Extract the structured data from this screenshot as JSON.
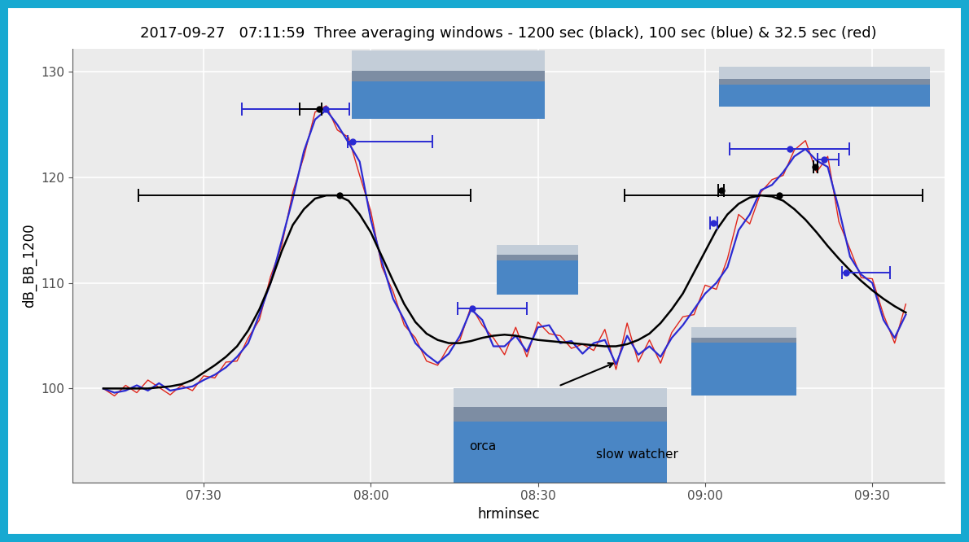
{
  "chart_data": {
    "type": "line",
    "title": "2017-09-27   07:11:59  Three averaging windows - 1200 sec (black), 100 sec (blue) & 32.5 sec (red)",
    "x_label": "hrminsec",
    "y_label": "dB_BB_1200",
    "xlim": [
      426.5,
      583
    ],
    "ylim": [
      91.1,
      132.2
    ],
    "xticks": [
      {
        "value": 450,
        "label": "07:30"
      },
      {
        "value": 480,
        "label": "08:00"
      },
      {
        "value": 510,
        "label": "08:30"
      },
      {
        "value": 540,
        "label": "09:00"
      },
      {
        "value": 570,
        "label": "09:30"
      }
    ],
    "yticks": [
      100,
      110,
      120,
      130
    ],
    "grid": true,
    "photo_labels": [
      "orca",
      "slow watcher"
    ],
    "x": [
      432,
      434,
      436,
      438,
      440,
      442,
      444,
      446,
      448,
      450,
      452,
      454,
      456,
      458,
      460,
      462,
      464,
      466,
      468,
      470,
      472,
      474,
      476,
      478,
      480,
      482,
      484,
      486,
      488,
      490,
      492,
      494,
      496,
      498,
      500,
      502,
      504,
      506,
      508,
      510,
      512,
      514,
      516,
      518,
      520,
      522,
      524,
      526,
      528,
      530,
      532,
      534,
      536,
      538,
      540,
      542,
      544,
      546,
      548,
      550,
      552,
      554,
      556,
      558,
      560,
      562,
      564,
      566,
      568,
      570,
      572,
      574,
      576
    ],
    "series": [
      {
        "type": "line",
        "color": "#e0261c",
        "values": [
          100,
          99.3,
          100.3,
          99.6,
          100.8,
          100.1,
          99.4,
          100.3,
          99.8,
          101.2,
          101.0,
          102.5,
          102.6,
          104.8,
          106.5,
          110.6,
          113.5,
          118.6,
          122.0,
          126.2,
          126.8,
          124.5,
          123.8,
          120.2,
          116.8,
          111.5,
          109.2,
          106.0,
          104.8,
          102.6,
          102.2,
          104.0,
          104.6,
          107.8,
          106.0,
          104.8,
          103.2,
          105.8,
          103.0,
          106.3,
          105.2,
          105.0,
          103.8,
          104.2,
          103.6,
          105.6,
          101.8,
          106.2,
          102.5,
          104.6,
          102.4,
          105.3,
          106.8,
          107.0,
          109.8,
          109.4,
          112.3,
          116.5,
          115.6,
          118.6,
          119.8,
          120.2,
          122.6,
          123.5,
          120.5,
          122.0,
          115.8,
          113.2,
          110.5,
          110.4,
          107.0,
          104.3,
          108.0
        ]
      },
      {
        "type": "line",
        "color": "#2a2ad2",
        "values": [
          100,
          99.6,
          99.8,
          100.3,
          99.8,
          100.5,
          99.8,
          100.0,
          100.2,
          100.8,
          101.3,
          102.0,
          103.0,
          104.3,
          107.0,
          110.0,
          114.0,
          118.0,
          122.5,
          125.5,
          126.4,
          125.0,
          123.3,
          121.5,
          116.0,
          112.0,
          108.5,
          106.5,
          104.3,
          103.2,
          102.4,
          103.3,
          105.0,
          107.5,
          106.5,
          104.0,
          104.0,
          105.0,
          103.5,
          105.8,
          106.0,
          104.3,
          104.5,
          103.3,
          104.3,
          104.6,
          102.3,
          105.0,
          103.2,
          104.0,
          103.0,
          104.8,
          106.0,
          107.5,
          109.0,
          110.0,
          111.5,
          115.0,
          116.5,
          118.8,
          119.3,
          120.5,
          122.0,
          122.7,
          121.6,
          121.0,
          117.0,
          112.5,
          110.8,
          110.0,
          106.5,
          104.8,
          107.0
        ]
      },
      {
        "type": "line",
        "color": "#000000",
        "values": [
          100,
          100,
          100,
          100,
          100,
          100.1,
          100.2,
          100.4,
          100.8,
          101.5,
          102.2,
          103,
          104,
          105.5,
          107.5,
          110,
          113,
          115.5,
          117,
          118,
          118.3,
          118.3,
          117.8,
          116.5,
          114.8,
          112.5,
          110.2,
          108,
          106.3,
          105.2,
          104.6,
          104.3,
          104.3,
          104.5,
          104.8,
          105,
          105.1,
          105,
          104.8,
          104.6,
          104.5,
          104.4,
          104.3,
          104.2,
          104.1,
          104,
          104,
          104.2,
          104.6,
          105.2,
          106.2,
          107.5,
          109,
          111,
          113,
          115,
          116.5,
          117.5,
          118.1,
          118.3,
          118.2,
          117.8,
          117,
          116,
          114.8,
          113.5,
          112.3,
          111.2,
          110.2,
          109.3,
          108.5,
          107.8,
          107.2
        ]
      },
      {
        "type": "errorbar",
        "color": "#2a2ad2",
        "x": [
          471.9,
          476.8,
          498.2,
          541.5,
          555.2,
          561.3,
          565.3
        ],
        "values": [
          126.5,
          123.4,
          107.6,
          115.7,
          122.7,
          121.7,
          111.0
        ],
        "x_low": [
          456.8,
          475.8,
          495.6,
          540.9,
          544.4,
          560.2,
          564.6
        ],
        "x_high": [
          476.1,
          491.0,
          508.0,
          542.2,
          565.9,
          563.9,
          573.2
        ]
      },
      {
        "type": "errorbar",
        "color": "#000000",
        "x": [
          470.8,
          542.9,
          559.8,
          474.4,
          553.3
        ],
        "values": [
          126.5,
          118.8,
          121.0,
          118.3,
          118.3
        ],
        "x_low": [
          467.2,
          542.4,
          559.4,
          438.3,
          525.6
        ],
        "x_high": [
          471.2,
          543.4,
          560.2,
          497.9,
          579.0
        ]
      }
    ]
  }
}
